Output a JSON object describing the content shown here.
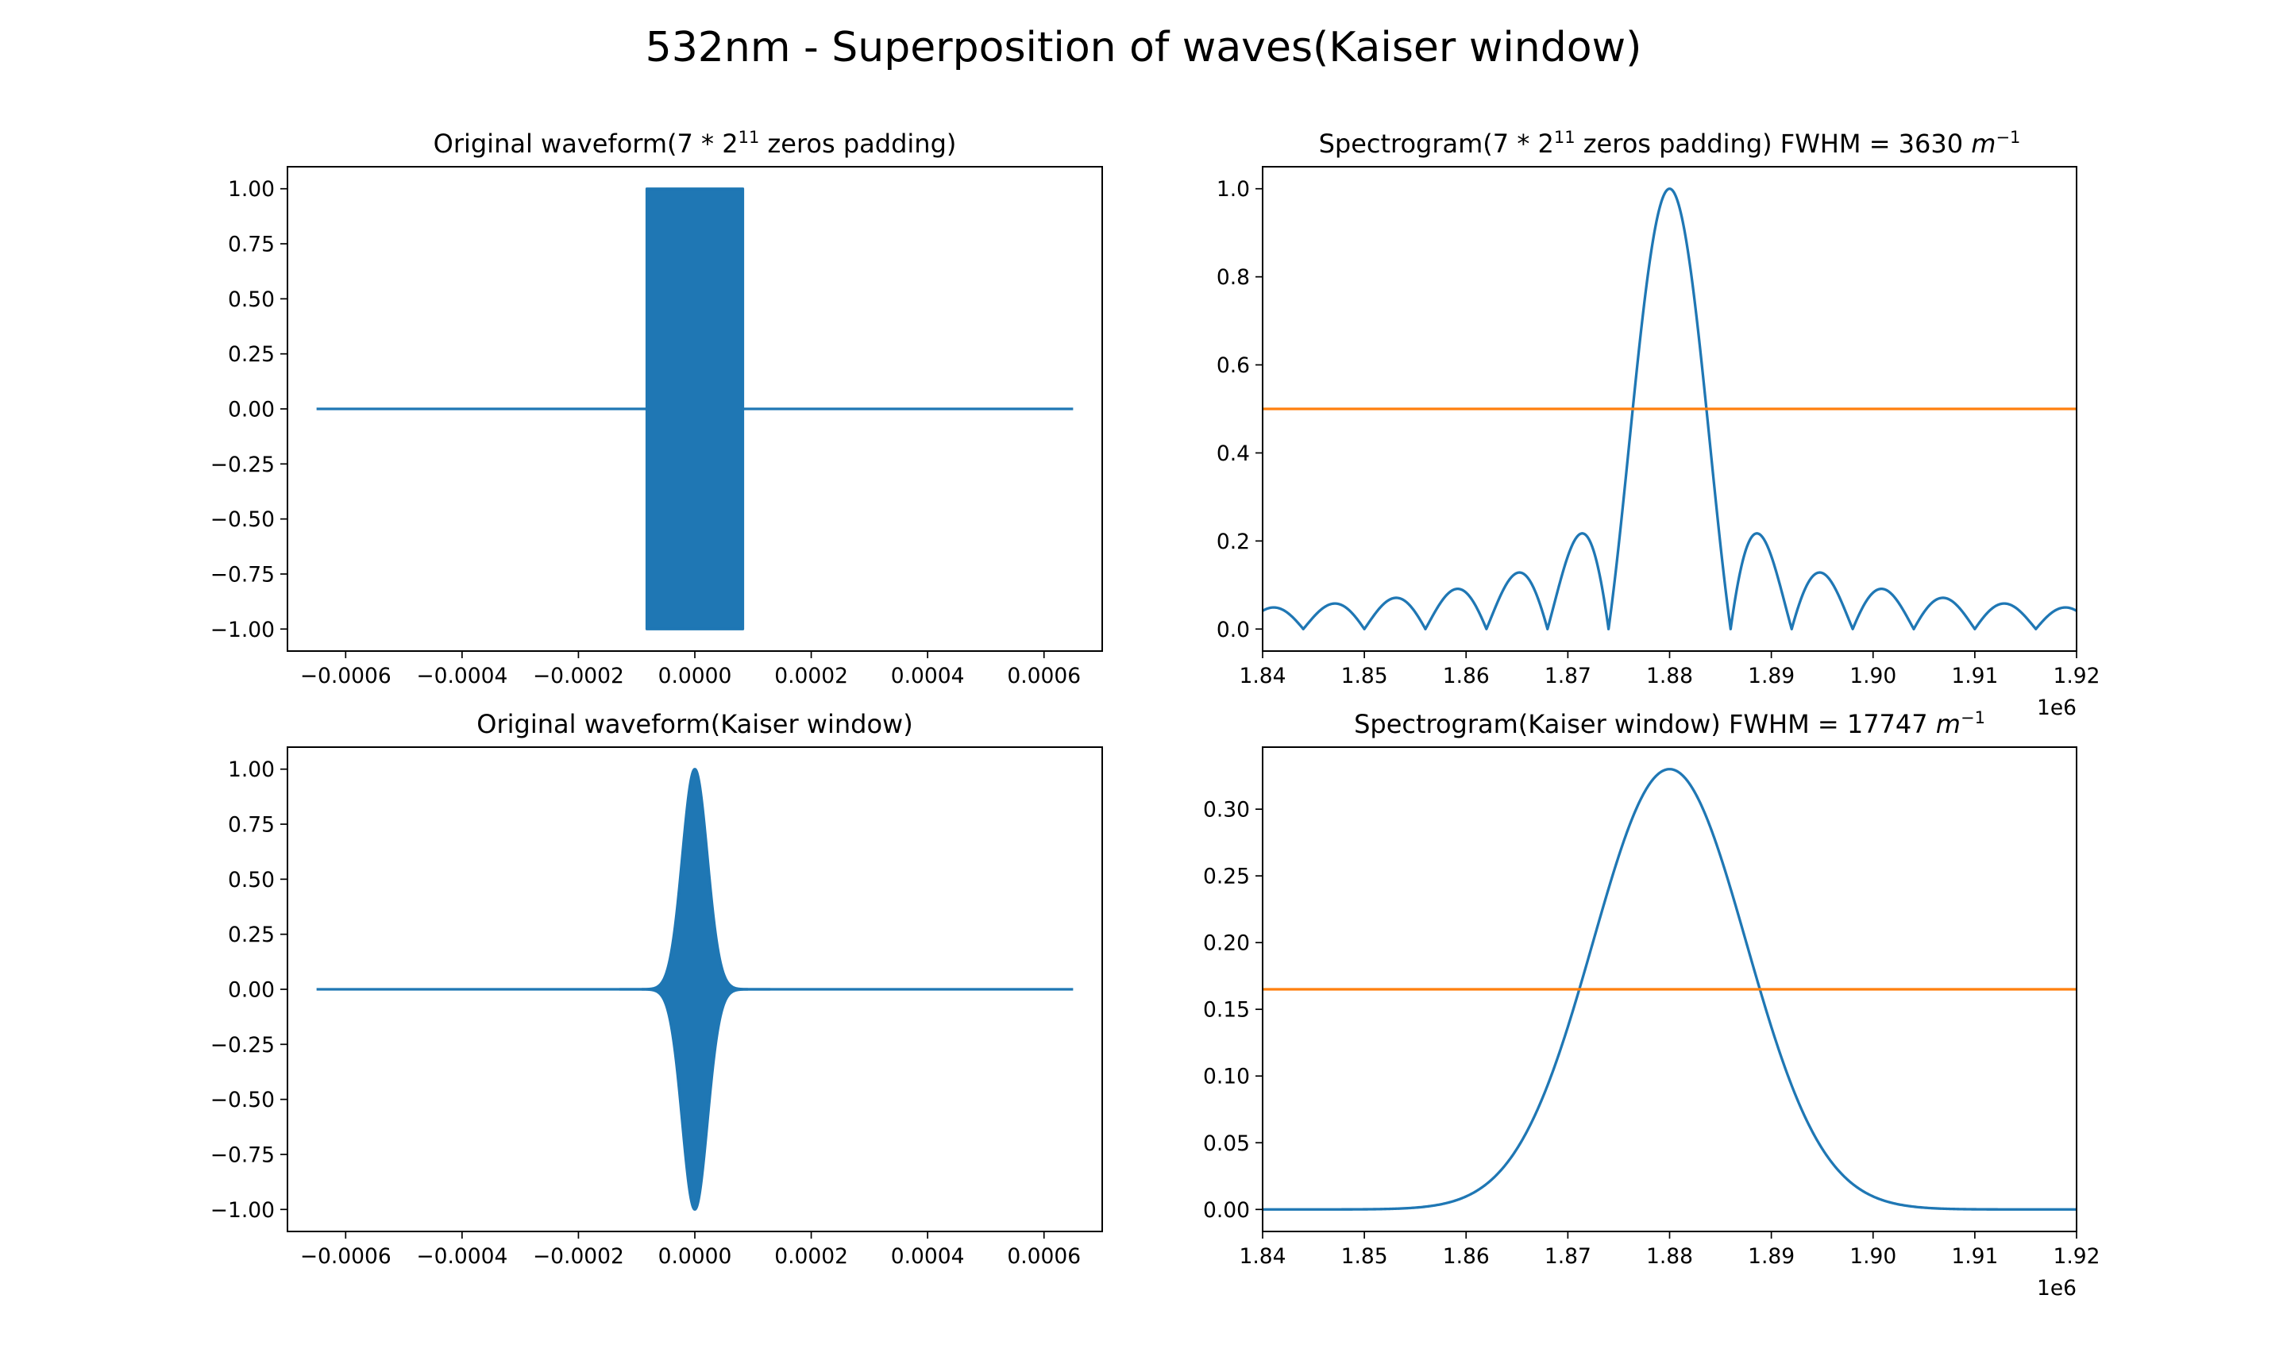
{
  "figure": {
    "title": "532nm - Superposition of waves(Kaiser window)"
  },
  "chart_data": [
    {
      "id": "wave-padding",
      "type": "line",
      "title": "Original waveform(7 * 2¹¹ zeros padding)",
      "xlabel": "",
      "ylabel": "",
      "xlim": [
        -0.0007,
        0.0007
      ],
      "ylim": [
        -1.1,
        1.1
      ],
      "xticks": [
        -0.0006,
        -0.0004,
        -0.0002,
        0.0,
        0.0002,
        0.0004,
        0.0006
      ],
      "xtick_labels": [
        "−0.0006",
        "−0.0004",
        "−0.0002",
        "0.0000",
        "0.0002",
        "0.0004",
        "0.0006"
      ],
      "yticks": [
        1.0,
        0.75,
        0.5,
        0.25,
        0.0,
        -0.25,
        -0.5,
        -0.75,
        -1.0
      ],
      "ytick_labels": [
        "1.00",
        "0.75",
        "0.50",
        "0.25",
        "0.00",
        "−0.25",
        "−0.50",
        "−0.75",
        "−1.00"
      ],
      "x_offset_label": "",
      "grid": false,
      "series": [
        {
          "kind": "signal",
          "color": "#1f77b4",
          "x_range": [
            -0.00065,
            0.00065
          ],
          "envelope": "rect",
          "half_width": 8.25e-05,
          "amplitude": 1.0,
          "baseline": 0.0
        }
      ]
    },
    {
      "id": "spec-padding",
      "type": "line",
      "title": "Spectrogram(7 * 2¹¹ zeros padding) FWHM = 3630 m⁻¹",
      "xlabel": "",
      "ylabel": "",
      "xlim": [
        1.84,
        1.92
      ],
      "ylim": [
        -0.05,
        1.05
      ],
      "xticks": [
        1.84,
        1.85,
        1.86,
        1.87,
        1.88,
        1.89,
        1.9,
        1.91,
        1.92
      ],
      "xtick_labels": [
        "1.84",
        "1.85",
        "1.86",
        "1.87",
        "1.88",
        "1.89",
        "1.90",
        "1.91",
        "1.92"
      ],
      "yticks": [
        1.0,
        0.8,
        0.6,
        0.4,
        0.2,
        0.0
      ],
      "ytick_labels": [
        "1.0",
        "0.8",
        "0.6",
        "0.4",
        "0.2",
        "0.0"
      ],
      "x_offset_label": "1e6",
      "grid": false,
      "series": [
        {
          "kind": "sinc",
          "color": "#1f77b4",
          "center": 1.88,
          "zero_spacing": 0.006,
          "peak": 1.0
        },
        {
          "kind": "hline",
          "color": "#ff7f0e",
          "y": 0.5
        }
      ]
    },
    {
      "id": "wave-kaiser",
      "type": "line",
      "title": "Original waveform(Kaiser window)",
      "xlabel": "",
      "ylabel": "",
      "xlim": [
        -0.0007,
        0.0007
      ],
      "ylim": [
        -1.1,
        1.1
      ],
      "xticks": [
        -0.0006,
        -0.0004,
        -0.0002,
        0.0,
        0.0002,
        0.0004,
        0.0006
      ],
      "xtick_labels": [
        "−0.0006",
        "−0.0004",
        "−0.0002",
        "0.0000",
        "0.0002",
        "0.0004",
        "0.0006"
      ],
      "yticks": [
        1.0,
        0.75,
        0.5,
        0.25,
        0.0,
        -0.25,
        -0.5,
        -0.75,
        -1.0
      ],
      "ytick_labels": [
        "1.00",
        "0.75",
        "0.50",
        "0.25",
        "0.00",
        "−0.25",
        "−0.50",
        "−0.75",
        "−1.00"
      ],
      "x_offset_label": "",
      "grid": false,
      "series": [
        {
          "kind": "signal",
          "color": "#1f77b4",
          "x_range": [
            -0.00065,
            0.00065
          ],
          "envelope": "gaussian",
          "sigma": 2.15e-05,
          "amplitude": 1.0,
          "baseline": 0.0
        }
      ]
    },
    {
      "id": "spec-kaiser",
      "type": "line",
      "title": "Spectrogram(Kaiser window) FWHM = 17747 m⁻¹",
      "xlabel": "",
      "ylabel": "",
      "xlim": [
        1.84,
        1.92
      ],
      "ylim": [
        -0.0165,
        0.3465
      ],
      "xticks": [
        1.84,
        1.85,
        1.86,
        1.87,
        1.88,
        1.89,
        1.9,
        1.91,
        1.92
      ],
      "xtick_labels": [
        "1.84",
        "1.85",
        "1.86",
        "1.87",
        "1.88",
        "1.89",
        "1.90",
        "1.91",
        "1.92"
      ],
      "yticks": [
        0.3,
        0.25,
        0.2,
        0.15,
        0.1,
        0.05,
        0.0
      ],
      "ytick_labels": [
        "0.30",
        "0.25",
        "0.20",
        "0.15",
        "0.10",
        "0.05",
        "0.00"
      ],
      "x_offset_label": "1e6",
      "grid": false,
      "series": [
        {
          "kind": "gaussian",
          "color": "#1f77b4",
          "center": 1.88,
          "fwhm": 0.017747,
          "peak": 0.33
        },
        {
          "kind": "hline",
          "color": "#ff7f0e",
          "y": 0.165
        }
      ]
    }
  ]
}
